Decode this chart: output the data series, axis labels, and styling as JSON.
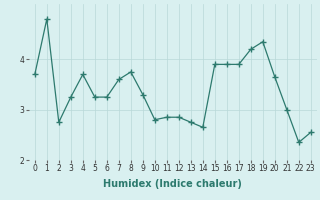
{
  "x": [
    0,
    1,
    2,
    3,
    4,
    5,
    6,
    7,
    8,
    9,
    10,
    11,
    12,
    13,
    14,
    15,
    16,
    17,
    18,
    19,
    20,
    21,
    22,
    23
  ],
  "y": [
    3.7,
    4.8,
    2.75,
    3.25,
    3.7,
    3.25,
    3.25,
    3.6,
    3.75,
    3.3,
    2.8,
    2.85,
    2.85,
    2.75,
    2.65,
    3.9,
    3.9,
    3.9,
    4.2,
    4.35,
    3.65,
    3.0,
    2.35,
    2.55
  ],
  "xlim": [
    -0.5,
    23.5
  ],
  "ylim": [
    2.0,
    5.1
  ],
  "yticks": [
    2,
    3,
    4
  ],
  "xticks": [
    0,
    1,
    2,
    3,
    4,
    5,
    6,
    7,
    8,
    9,
    10,
    11,
    12,
    13,
    14,
    15,
    16,
    17,
    18,
    19,
    20,
    21,
    22,
    23
  ],
  "xlabel": "Humidex (Indice chaleur)",
  "line_color": "#2d7a6e",
  "marker": "+",
  "marker_size": 4,
  "marker_edge_width": 1.0,
  "line_width": 0.9,
  "bg_color": "#d9f0f0",
  "grid_color": "#b8d8d8",
  "grid_linewidth": 0.5,
  "tick_label_fontsize": 5.5,
  "xlabel_fontsize": 7,
  "xlabel_fontweight": "bold"
}
